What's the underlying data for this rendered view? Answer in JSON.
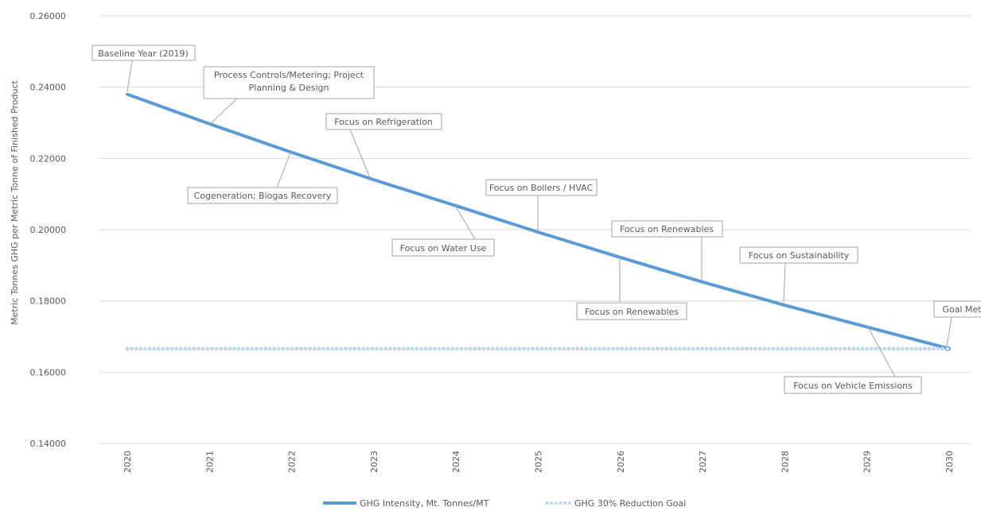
{
  "chart_data": {
    "type": "line",
    "title": "",
    "xlabel": "",
    "ylabel": "Metric Tonnes GHG per Metric Tonne of Finished Product",
    "categories": [
      "2020",
      "2021",
      "2022",
      "2023",
      "2024",
      "2025",
      "2026",
      "2027",
      "2028",
      "2029",
      "2030"
    ],
    "ylim": [
      0.14,
      0.26
    ],
    "y_ticks": [
      "0.14000",
      "0.16000",
      "0.18000",
      "0.20000",
      "0.22000",
      "0.24000",
      "0.26000"
    ],
    "grid": true,
    "legend_position": "bottom",
    "series": [
      {
        "name": "GHG Intensity, Mt. Tonnes/MT",
        "style": "solid",
        "color": "#5b9bd5",
        "values": [
          0.238,
          0.2297,
          0.2217,
          0.214,
          0.2067,
          0.1993,
          0.1922,
          0.1853,
          0.1788,
          0.1727,
          0.1666
        ]
      },
      {
        "name": "GHG 30% Reduction Goal",
        "style": "dotted",
        "color": "#bdd7ee",
        "values": [
          0.1666,
          0.1666,
          0.1666,
          0.1666,
          0.1666,
          0.1666,
          0.1666,
          0.1666,
          0.1666,
          0.1666,
          0.1666
        ]
      }
    ],
    "annotations": [
      {
        "text": "Baseline Year (2019)"
      },
      {
        "text": "Process Controls/Metering; Project Planning & Design"
      },
      {
        "text": "Cogeneration; Biogas Recovery"
      },
      {
        "text": "Focus on Refrigeration"
      },
      {
        "text": "Focus on Water Use"
      },
      {
        "text": "Focus on Boilers / HVAC"
      },
      {
        "text": "Focus on Renewables"
      },
      {
        "text": "Focus on Renewables"
      },
      {
        "text": "Focus on Sustainability"
      },
      {
        "text": "Focus on Vehicle Emissions"
      },
      {
        "text": "Goal Met"
      }
    ]
  }
}
